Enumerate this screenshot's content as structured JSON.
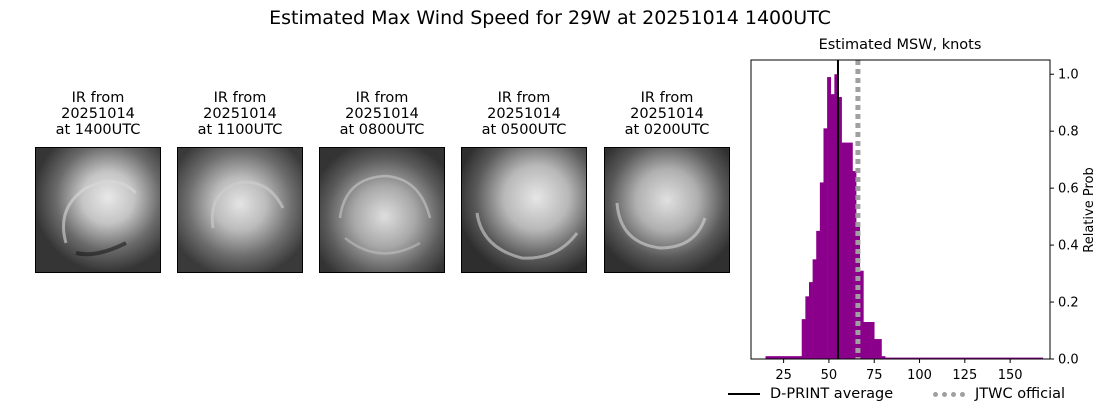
{
  "suptitle": "Estimated Max Wind Speed for 29W at 20251014 1400UTC",
  "ir_panels": [
    {
      "title": "IR from\n20251014\nat 1400UTC"
    },
    {
      "title": "IR from\n20251014\nat 1100UTC"
    },
    {
      "title": "IR from\n20251014\nat 0800UTC"
    },
    {
      "title": "IR from\n20251014\nat 0500UTC"
    },
    {
      "title": "IR from\n20251014\nat 0200UTC"
    }
  ],
  "chart_data": {
    "type": "bar",
    "title": "Estimated MSW, knots",
    "xlabel": "",
    "ylabel": "Relative Prob",
    "xlim": [
      7,
      172
    ],
    "ylim": [
      0,
      1.05
    ],
    "xticks": [
      25,
      50,
      75,
      100,
      125,
      150
    ],
    "yticks": [
      0.0,
      0.2,
      0.4,
      0.6,
      0.8,
      1.0
    ],
    "ytick_labels": [
      "0.0",
      "0.2",
      "0.4",
      "0.6",
      "0.8",
      "1.0"
    ],
    "y_axis_side": "right",
    "bar_color": "#8b008b",
    "bins": [
      {
        "x0": 15,
        "x1": 35,
        "y": 0.01
      },
      {
        "x0": 35,
        "x1": 37,
        "y": 0.14
      },
      {
        "x0": 37,
        "x1": 39,
        "y": 0.22
      },
      {
        "x0": 39,
        "x1": 41,
        "y": 0.27
      },
      {
        "x0": 41,
        "x1": 43,
        "y": 0.35
      },
      {
        "x0": 43,
        "x1": 45,
        "y": 0.45
      },
      {
        "x0": 45,
        "x1": 47,
        "y": 0.62
      },
      {
        "x0": 47,
        "x1": 49,
        "y": 0.81
      },
      {
        "x0": 49,
        "x1": 51,
        "y": 0.99
      },
      {
        "x0": 51,
        "x1": 53,
        "y": 0.93
      },
      {
        "x0": 53,
        "x1": 55,
        "y": 1.0
      },
      {
        "x0": 55,
        "x1": 57,
        "y": 0.92
      },
      {
        "x0": 57,
        "x1": 59,
        "y": 0.76
      },
      {
        "x0": 59,
        "x1": 61,
        "y": 0.76
      },
      {
        "x0": 61,
        "x1": 63,
        "y": 0.76
      },
      {
        "x0": 63,
        "x1": 65,
        "y": 0.66
      },
      {
        "x0": 65,
        "x1": 67,
        "y": 0.48
      },
      {
        "x0": 67,
        "x1": 69,
        "y": 0.31
      },
      {
        "x0": 69,
        "x1": 71,
        "y": 0.13
      },
      {
        "x0": 71,
        "x1": 73,
        "y": 0.13
      },
      {
        "x0": 73,
        "x1": 75,
        "y": 0.13
      },
      {
        "x0": 75,
        "x1": 77,
        "y": 0.07
      },
      {
        "x0": 77,
        "x1": 79,
        "y": 0.07
      },
      {
        "x0": 79,
        "x1": 81,
        "y": 0.01
      },
      {
        "x0": 81,
        "x1": 168,
        "y": 0.005
      }
    ],
    "lines": [
      {
        "name": "D-PRINT average",
        "x": 55,
        "color": "#000000",
        "style": "solid"
      },
      {
        "name": "JTWC official",
        "x": 66,
        "color": "#a0a0a0",
        "style": "dotted"
      }
    ],
    "legend_placement": "bottom-right"
  }
}
